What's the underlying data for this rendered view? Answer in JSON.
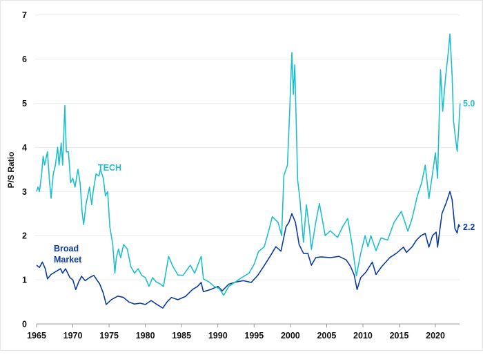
{
  "chart_data": {
    "type": "line",
    "title": "",
    "xlabel": "",
    "ylabel": "P/S Ratio",
    "xlim": [
      1965,
      2023.4
    ],
    "ylim": [
      0,
      7
    ],
    "x_ticks": [
      "1965",
      "1970",
      "1975",
      "1980",
      "1985",
      "1990",
      "1995",
      "2000",
      "2005",
      "2010",
      "2015",
      "2020"
    ],
    "y_ticks": [
      "0",
      "1",
      "2",
      "3",
      "4",
      "5",
      "6",
      "7"
    ],
    "grid": "horizontal",
    "series": [
      {
        "name": "TECH",
        "color": "#1dbfcb",
        "end_label": "5.0",
        "points": [
          [
            1965.0,
            3.0
          ],
          [
            1965.2,
            3.1
          ],
          [
            1965.4,
            3.0
          ],
          [
            1965.7,
            3.4
          ],
          [
            1965.9,
            3.8
          ],
          [
            1966.1,
            3.6
          ],
          [
            1966.5,
            3.9
          ],
          [
            1966.8,
            3.2
          ],
          [
            1967.0,
            2.85
          ],
          [
            1967.3,
            3.4
          ],
          [
            1967.6,
            3.6
          ],
          [
            1967.9,
            4.0
          ],
          [
            1968.1,
            3.6
          ],
          [
            1968.4,
            4.1
          ],
          [
            1968.6,
            3.6
          ],
          [
            1968.9,
            4.95
          ],
          [
            1969.1,
            3.9
          ],
          [
            1969.4,
            3.9
          ],
          [
            1969.7,
            3.2
          ],
          [
            1970.0,
            3.3
          ],
          [
            1970.3,
            3.1
          ],
          [
            1970.7,
            3.5
          ],
          [
            1971.0,
            3.2
          ],
          [
            1971.3,
            2.5
          ],
          [
            1971.5,
            2.25
          ],
          [
            1971.8,
            2.7
          ],
          [
            1972.3,
            3.1
          ],
          [
            1972.6,
            2.7
          ],
          [
            1972.8,
            3.0
          ],
          [
            1973.2,
            3.4
          ],
          [
            1973.6,
            3.35
          ],
          [
            1973.8,
            3.5
          ],
          [
            1974.2,
            3.3
          ],
          [
            1974.5,
            2.9
          ],
          [
            1974.8,
            3.0
          ],
          [
            1975.1,
            2.2
          ],
          [
            1975.5,
            1.8
          ],
          [
            1975.8,
            1.15
          ],
          [
            1976.0,
            1.5
          ],
          [
            1976.3,
            1.7
          ],
          [
            1976.6,
            1.5
          ],
          [
            1977.0,
            1.8
          ],
          [
            1977.5,
            1.7
          ],
          [
            1978.0,
            1.3
          ],
          [
            1978.5,
            1.15
          ],
          [
            1979.0,
            1.25
          ],
          [
            1979.5,
            1.1
          ],
          [
            1980.0,
            1.05
          ],
          [
            1980.5,
            0.85
          ],
          [
            1981.0,
            1.05
          ],
          [
            1981.5,
            0.95
          ],
          [
            1982.0,
            0.91
          ],
          [
            1982.5,
            0.85
          ],
          [
            1983.2,
            1.53
          ],
          [
            1983.8,
            1.3
          ],
          [
            1984.5,
            1.11
          ],
          [
            1985.2,
            1.1
          ],
          [
            1986.2,
            1.33
          ],
          [
            1986.8,
            1.15
          ],
          [
            1987.7,
            1.53
          ],
          [
            1988.0,
            1.02
          ],
          [
            1988.8,
            0.95
          ],
          [
            1989.5,
            0.85
          ],
          [
            1990.2,
            0.8
          ],
          [
            1990.8,
            0.65
          ],
          [
            1991.5,
            0.85
          ],
          [
            1992.4,
            0.95
          ],
          [
            1993.3,
            1.05
          ],
          [
            1994.3,
            1.15
          ],
          [
            1995.0,
            1.35
          ],
          [
            1995.6,
            1.64
          ],
          [
            1996.4,
            1.75
          ],
          [
            1997.0,
            2.1
          ],
          [
            1997.5,
            2.43
          ],
          [
            1998.3,
            2.3
          ],
          [
            1998.8,
            2.0
          ],
          [
            1999.1,
            3.36
          ],
          [
            1999.6,
            3.6
          ],
          [
            1999.9,
            4.82
          ],
          [
            2000.2,
            6.15
          ],
          [
            2000.4,
            5.2
          ],
          [
            2000.6,
            5.87
          ],
          [
            2001.0,
            3.26
          ],
          [
            2001.3,
            2.85
          ],
          [
            2001.8,
            1.85
          ],
          [
            2002.2,
            2.7
          ],
          [
            2002.6,
            2.2
          ],
          [
            2002.9,
            1.69
          ],
          [
            2003.5,
            2.3
          ],
          [
            2004.0,
            2.73
          ],
          [
            2004.8,
            2.0
          ],
          [
            2005.5,
            2.11
          ],
          [
            2006.5,
            1.96
          ],
          [
            2007.2,
            2.2
          ],
          [
            2007.9,
            2.39
          ],
          [
            2008.5,
            1.8
          ],
          [
            2009.1,
            1.09
          ],
          [
            2009.7,
            1.6
          ],
          [
            2010.3,
            2.0
          ],
          [
            2010.7,
            1.75
          ],
          [
            2011.1,
            2.0
          ],
          [
            2011.8,
            1.66
          ],
          [
            2012.5,
            1.95
          ],
          [
            2013.4,
            1.9
          ],
          [
            2014.3,
            2.3
          ],
          [
            2015.3,
            2.55
          ],
          [
            2016.2,
            2.1
          ],
          [
            2016.8,
            2.4
          ],
          [
            2017.5,
            2.9
          ],
          [
            2018.1,
            3.2
          ],
          [
            2018.6,
            3.6
          ],
          [
            2019.1,
            2.84
          ],
          [
            2019.6,
            3.4
          ],
          [
            2020.0,
            3.88
          ],
          [
            2020.3,
            3.3
          ],
          [
            2020.7,
            5.76
          ],
          [
            2021.0,
            4.82
          ],
          [
            2021.4,
            5.6
          ],
          [
            2021.8,
            6.2
          ],
          [
            2022.0,
            6.57
          ],
          [
            2022.3,
            5.65
          ],
          [
            2022.5,
            4.6
          ],
          [
            2022.7,
            4.3
          ],
          [
            2023.0,
            3.91
          ],
          [
            2023.2,
            4.4
          ],
          [
            2023.4,
            5.0
          ]
        ]
      },
      {
        "name": "Broad Market",
        "color": "#0b3a9f",
        "end_label": "2.2",
        "points": [
          [
            1965.0,
            1.33
          ],
          [
            1965.4,
            1.28
          ],
          [
            1965.8,
            1.4
          ],
          [
            1966.2,
            1.25
          ],
          [
            1966.5,
            1.02
          ],
          [
            1967.0,
            1.12
          ],
          [
            1967.6,
            1.18
          ],
          [
            1968.3,
            1.25
          ],
          [
            1968.6,
            1.15
          ],
          [
            1969.0,
            1.25
          ],
          [
            1969.6,
            1.05
          ],
          [
            1970.0,
            1.0
          ],
          [
            1970.4,
            0.78
          ],
          [
            1970.8,
            0.95
          ],
          [
            1971.2,
            1.08
          ],
          [
            1971.7,
            0.98
          ],
          [
            1972.3,
            1.05
          ],
          [
            1972.9,
            1.1
          ],
          [
            1973.3,
            1.0
          ],
          [
            1973.7,
            0.91
          ],
          [
            1974.2,
            0.7
          ],
          [
            1974.6,
            0.44
          ],
          [
            1975.3,
            0.55
          ],
          [
            1976.2,
            0.63
          ],
          [
            1977.0,
            0.6
          ],
          [
            1977.7,
            0.5
          ],
          [
            1978.5,
            0.45
          ],
          [
            1979.3,
            0.47
          ],
          [
            1980.0,
            0.44
          ],
          [
            1980.8,
            0.53
          ],
          [
            1981.5,
            0.45
          ],
          [
            1982.1,
            0.39
          ],
          [
            1982.4,
            0.36
          ],
          [
            1983.0,
            0.5
          ],
          [
            1983.6,
            0.6
          ],
          [
            1984.5,
            0.55
          ],
          [
            1985.5,
            0.62
          ],
          [
            1986.5,
            0.78
          ],
          [
            1987.2,
            0.85
          ],
          [
            1987.7,
            0.94
          ],
          [
            1988.0,
            0.73
          ],
          [
            1989.0,
            0.78
          ],
          [
            1990.0,
            0.85
          ],
          [
            1990.6,
            0.75
          ],
          [
            1991.5,
            0.9
          ],
          [
            1992.5,
            0.95
          ],
          [
            1993.5,
            0.98
          ],
          [
            1994.6,
            0.94
          ],
          [
            1995.5,
            1.1
          ],
          [
            1996.3,
            1.3
          ],
          [
            1997.2,
            1.53
          ],
          [
            1998.0,
            1.75
          ],
          [
            1998.7,
            1.65
          ],
          [
            1999.4,
            2.2
          ],
          [
            1999.8,
            2.3
          ],
          [
            2000.2,
            2.5
          ],
          [
            2000.7,
            2.3
          ],
          [
            2001.2,
            1.8
          ],
          [
            2001.8,
            1.6
          ],
          [
            2002.4,
            1.6
          ],
          [
            2002.9,
            1.33
          ],
          [
            2003.5,
            1.5
          ],
          [
            2004.2,
            1.52
          ],
          [
            2005.5,
            1.5
          ],
          [
            2006.7,
            1.53
          ],
          [
            2007.7,
            1.45
          ],
          [
            2008.3,
            1.3
          ],
          [
            2008.8,
            1.11
          ],
          [
            2009.2,
            0.78
          ],
          [
            2009.7,
            1.05
          ],
          [
            2010.4,
            1.17
          ],
          [
            2011.3,
            1.4
          ],
          [
            2011.8,
            1.12
          ],
          [
            2012.6,
            1.3
          ],
          [
            2013.7,
            1.5
          ],
          [
            2014.6,
            1.6
          ],
          [
            2015.6,
            1.74
          ],
          [
            2016.0,
            1.62
          ],
          [
            2016.8,
            1.75
          ],
          [
            2017.4,
            1.9
          ],
          [
            2018.0,
            2.0
          ],
          [
            2018.6,
            2.05
          ],
          [
            2019.1,
            1.74
          ],
          [
            2019.6,
            2.0
          ],
          [
            2020.1,
            2.08
          ],
          [
            2020.3,
            1.74
          ],
          [
            2020.9,
            2.5
          ],
          [
            2021.5,
            2.75
          ],
          [
            2022.0,
            3.0
          ],
          [
            2022.3,
            2.82
          ],
          [
            2022.7,
            2.16
          ],
          [
            2023.0,
            2.06
          ],
          [
            2023.2,
            2.25
          ],
          [
            2023.4,
            2.2
          ]
        ]
      }
    ],
    "annotations": [
      {
        "text": "TECH",
        "series": "TECH"
      },
      {
        "text": "Broad\nMarket",
        "series": "Broad Market"
      }
    ]
  }
}
